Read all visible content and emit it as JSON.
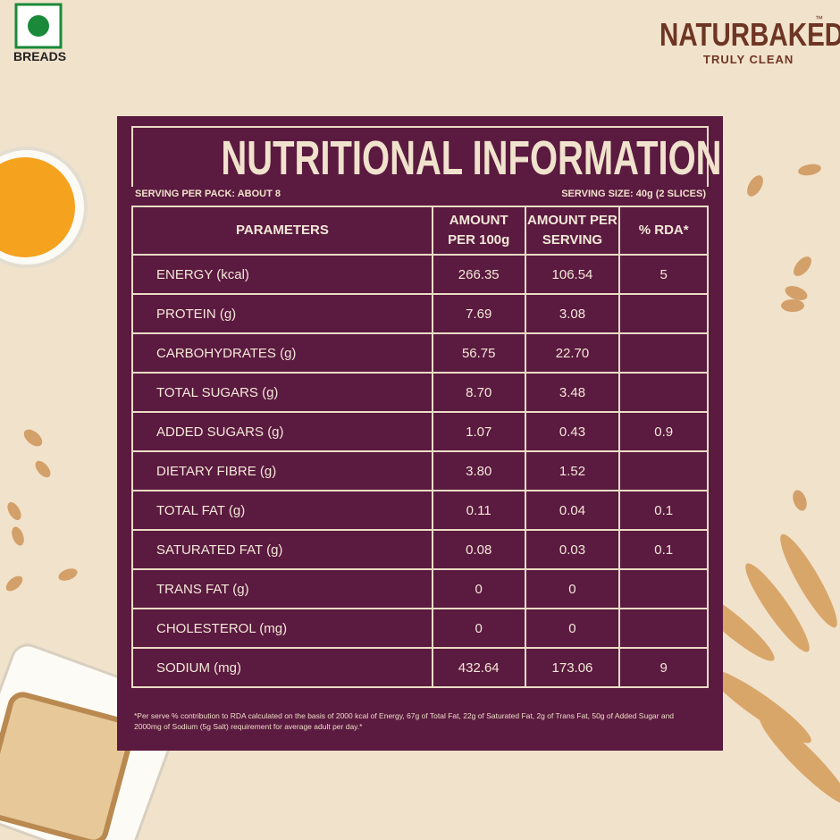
{
  "header": {
    "badge": "BREADS",
    "brand": "NATURBAKED",
    "trademark": "™",
    "tagline": "TRULY CLEAN"
  },
  "table": {
    "title": "NUTRITIONAL INFORMATION",
    "serving_per_pack": "SERVING PER PACK: ABOUT 8",
    "serving_size": "SERVING SIZE: 40g (2 SLICES)",
    "columns": [
      "PARAMETERS",
      "AMOUNT\nPER 100g",
      "AMOUNT PER\nSERVING",
      "% RDA*"
    ],
    "rows": [
      [
        "ENERGY (kcal)",
        "266.35",
        "106.54",
        "5"
      ],
      [
        "PROTEIN (g)",
        "7.69",
        "3.08"
      ],
      [
        "CARBOHYDRATES (g)",
        "56.75",
        "22.70"
      ],
      [
        "TOTAL SUGARS (g)",
        "8.70",
        "3.48"
      ],
      [
        "ADDED SUGARS (g)",
        "1.07",
        "0.43",
        "0.9"
      ],
      [
        "DIETARY FIBRE (g)",
        "3.80",
        "1.52"
      ],
      [
        "TOTAL FAT (g)",
        "0.11",
        "0.04",
        "0.1"
      ],
      [
        "SATURATED FAT (g)",
        "0.08",
        "0.03",
        "0.1"
      ],
      [
        "TRANS FAT (g)",
        "0",
        "0"
      ],
      [
        "CHOLESTEROL (mg)",
        "0",
        "0"
      ],
      [
        "SODIUM (mg)",
        "432.64",
        "173.06",
        "9"
      ]
    ],
    "footnote": "*Per serve % contribution to RDA calculated on the basis of 2000 kcal of Energy, 67g of Total Fat, 22g of Saturated Fat, 2g of Trans Fat, 50g of Added Sugar and 2000mg of Sodium (5g Salt) requirement for average adult per day.*"
  }
}
